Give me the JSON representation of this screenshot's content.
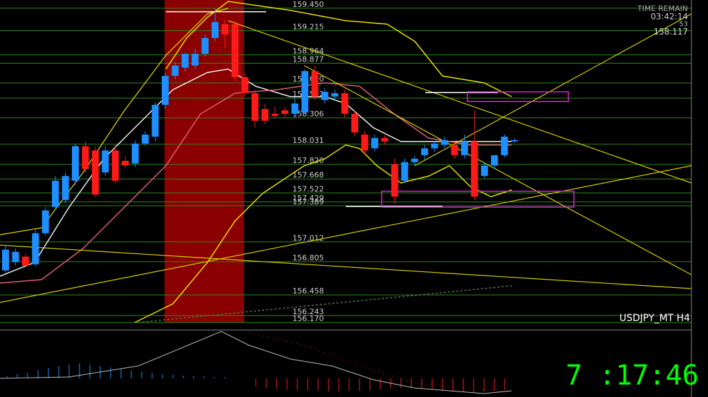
{
  "chart_data": {
    "type": "candlestick",
    "symbol": "USDJPY_MT H4",
    "timer": {
      "title": "TIME REMAIN",
      "remain": "03:42:14",
      "seconds": "53",
      "price": "158.117"
    },
    "clock": "7 :17:46",
    "ylim": [
      156.171,
      159.536
    ],
    "colors": {
      "up": "#1e8fff",
      "down": "#ff1a1a",
      "level": "#2f8a1f"
    },
    "levels": [
      {
        "value": 159.45,
        "label": "159.450"
      },
      159.215,
      158.964,
      158.877,
      {
        "value": 158.67,
        "label": "158.670"
      },
      158.512,
      158.306,
      158.031,
      {
        "value": 157.82,
        "label": "157.820"
      },
      157.668,
      157.522,
      157.429,
      157.389,
      157.012,
      156.805,
      156.458,
      156.243,
      {
        "value": 156.17,
        "label": "156.170"
      }
    ],
    "open": [
      156.714,
      156.8,
      156.858,
      156.778,
      157.102,
      157.376,
      157.448,
      157.65,
      158.01,
      157.966,
      157.736,
      157.966,
      157.858,
      157.83,
      158.038,
      158.11,
      158.442,
      158.744,
      158.83,
      158.852,
      158.974,
      159.14,
      159.284,
      159.284,
      158.73,
      158.564,
      158.398,
      158.348,
      158.384,
      158.348,
      158.362,
      158.794,
      158.492,
      158.528,
      158.564,
      158.348,
      158.132,
      157.988,
      158.096,
      157.822,
      157.65,
      157.844,
      157.916,
      157.988,
      158.024,
      158.024,
      157.916,
      158.06,
      157.7,
      157.808,
      157.916,
      158.06
    ],
    "high": [
      156.98,
      156.944,
      156.886,
      157.138,
      157.376,
      157.7,
      157.736,
      158.038,
      158.06,
      158.01,
      158.01,
      158.024,
      157.909,
      158.067,
      158.168,
      158.47,
      158.78,
      158.888,
      158.989,
      159.032,
      159.176,
      159.45,
      159.334,
      159.32,
      158.78,
      158.6,
      158.456,
      158.42,
      158.42,
      158.528,
      158.816,
      158.852,
      158.614,
      158.6,
      158.6,
      158.384,
      158.168,
      158.132,
      158.125,
      157.88,
      157.88,
      157.909,
      158.024,
      158.067,
      158.11,
      158.06,
      158.132,
      158.384,
      157.844,
      157.916,
      158.132,
      158.096
    ],
    "low": [
      156.692,
      156.764,
      156.742,
      156.757,
      157.074,
      157.34,
      157.412,
      157.606,
      157.736,
      157.477,
      157.7,
      157.621,
      157.779,
      157.794,
      158.01,
      158.06,
      158.398,
      158.708,
      158.787,
      158.816,
      158.946,
      159.104,
      159.032,
      158.686,
      158.528,
      158.204,
      158.24,
      158.298,
      158.312,
      158.312,
      158.362,
      158.492,
      158.456,
      158.492,
      158.312,
      158.11,
      157.916,
      157.952,
      158.024,
      157.412,
      157.628,
      157.808,
      157.866,
      157.952,
      157.988,
      157.88,
      157.88,
      157.448,
      157.678,
      157.772,
      157.894,
      158.046
    ],
    "close": [
      156.93,
      156.908,
      156.764,
      157.102,
      157.34,
      157.65,
      157.7,
      158.01,
      157.772,
      157.506,
      157.966,
      157.65,
      157.808,
      158.038,
      158.132,
      158.442,
      158.744,
      158.852,
      158.974,
      158.974,
      159.14,
      159.306,
      159.176,
      158.73,
      158.564,
      158.276,
      158.276,
      158.326,
      158.348,
      158.456,
      158.794,
      158.528,
      158.578,
      158.564,
      158.348,
      158.154,
      157.966,
      158.096,
      158.06,
      157.484,
      157.844,
      157.88,
      157.988,
      158.038,
      158.074,
      157.916,
      158.06,
      157.484,
      157.808,
      157.916,
      158.11,
      158.074
    ]
  }
}
